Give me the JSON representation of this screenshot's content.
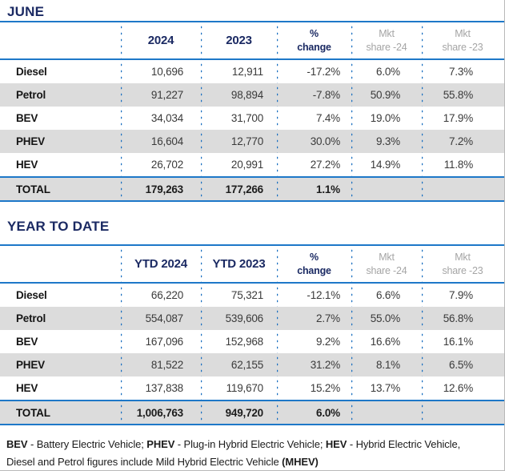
{
  "colors": {
    "accent_blue": "#1e78c8",
    "dot_blue": "#1a6fc0",
    "navy_text": "#1b2a63",
    "row_shade": "#dcdcdc",
    "muted_header_gray": "#a5a5a5",
    "outer_border_gray": "#b9b9b9"
  },
  "june": {
    "title": "JUNE",
    "headers": [
      "2024",
      "2023",
      "%\nchange",
      "Mkt\nshare -24",
      "Mkt\nshare -23"
    ],
    "rows": [
      {
        "label": "Diesel",
        "values": [
          "10,696",
          "12,911",
          "-17.2%",
          "6.0%",
          "7.3%"
        ]
      },
      {
        "label": "Petrol",
        "values": [
          "91,227",
          "98,894",
          "-7.8%",
          "50.9%",
          "55.8%"
        ]
      },
      {
        "label": "BEV",
        "values": [
          "34,034",
          "31,700",
          "7.4%",
          "19.0%",
          "17.9%"
        ]
      },
      {
        "label": "PHEV",
        "values": [
          "16,604",
          "12,770",
          "30.0%",
          "9.3%",
          "7.2%"
        ]
      },
      {
        "label": "HEV",
        "values": [
          "26,702",
          "20,991",
          "27.2%",
          "14.9%",
          "11.8%"
        ]
      }
    ],
    "total": {
      "label": "TOTAL",
      "values": [
        "179,263",
        "177,266",
        "1.1%",
        "",
        ""
      ]
    }
  },
  "ytd": {
    "title": "YEAR TO DATE",
    "headers": [
      "YTD 2024",
      "YTD 2023",
      "%\nchange",
      "Mkt\nshare -24",
      "Mkt\nshare -23"
    ],
    "rows": [
      {
        "label": "Diesel",
        "values": [
          "66,220",
          "75,321",
          "-12.1%",
          "6.6%",
          "7.9%"
        ]
      },
      {
        "label": "Petrol",
        "values": [
          "554,087",
          "539,606",
          "2.7%",
          "55.0%",
          "56.8%"
        ]
      },
      {
        "label": "BEV",
        "values": [
          "167,096",
          "152,968",
          "9.2%",
          "16.6%",
          "16.1%"
        ]
      },
      {
        "label": "PHEV",
        "values": [
          "81,522",
          "62,155",
          "31.2%",
          "8.1%",
          "6.5%"
        ]
      },
      {
        "label": "HEV",
        "values": [
          "137,838",
          "119,670",
          "15.2%",
          "13.7%",
          "12.6%"
        ]
      }
    ],
    "total": {
      "label": "TOTAL",
      "values": [
        "1,006,763",
        "949,720",
        "6.0%",
        "",
        ""
      ]
    }
  },
  "footnote": {
    "parts": [
      "BEV",
      " - Battery Electric Vehicle; ",
      "PHEV",
      " - Plug-in Hybrid Electric Vehicle; ",
      "HEV",
      " - Hybrid Electric Vehicle,",
      "Diesel and Petrol figures include Mild Hybrid Electric Vehicle ",
      "(MHEV)"
    ]
  },
  "chart_data": [
    {
      "type": "table",
      "title": "JUNE",
      "columns": [
        "",
        "2024",
        "2023",
        "% change",
        "Mkt share -24",
        "Mkt share -23"
      ],
      "rows": [
        [
          "Diesel",
          "10,696",
          "12,911",
          "-17.2%",
          "6.0%",
          "7.3%"
        ],
        [
          "Petrol",
          "91,227",
          "98,894",
          "-7.8%",
          "50.9%",
          "55.8%"
        ],
        [
          "BEV",
          "34,034",
          "31,700",
          "7.4%",
          "19.0%",
          "17.9%"
        ],
        [
          "PHEV",
          "16,604",
          "12,770",
          "30.0%",
          "9.3%",
          "7.2%"
        ],
        [
          "HEV",
          "26,702",
          "20,991",
          "27.2%",
          "14.9%",
          "11.8%"
        ],
        [
          "TOTAL",
          "179,263",
          "177,266",
          "1.1%",
          "",
          ""
        ]
      ]
    },
    {
      "type": "table",
      "title": "YEAR TO DATE",
      "columns": [
        "",
        "YTD 2024",
        "YTD 2023",
        "% change",
        "Mkt share -24",
        "Mkt share -23"
      ],
      "rows": [
        [
          "Diesel",
          "66,220",
          "75,321",
          "-12.1%",
          "6.6%",
          "7.9%"
        ],
        [
          "Petrol",
          "554,087",
          "539,606",
          "2.7%",
          "55.0%",
          "56.8%"
        ],
        [
          "BEV",
          "167,096",
          "152,968",
          "9.2%",
          "16.6%",
          "16.1%"
        ],
        [
          "PHEV",
          "81,522",
          "62,155",
          "31.2%",
          "8.1%",
          "6.5%"
        ],
        [
          "HEV",
          "137,838",
          "119,670",
          "15.2%",
          "13.7%",
          "12.6%"
        ],
        [
          "TOTAL",
          "1,006,763",
          "949,720",
          "6.0%",
          "",
          ""
        ]
      ]
    }
  ]
}
